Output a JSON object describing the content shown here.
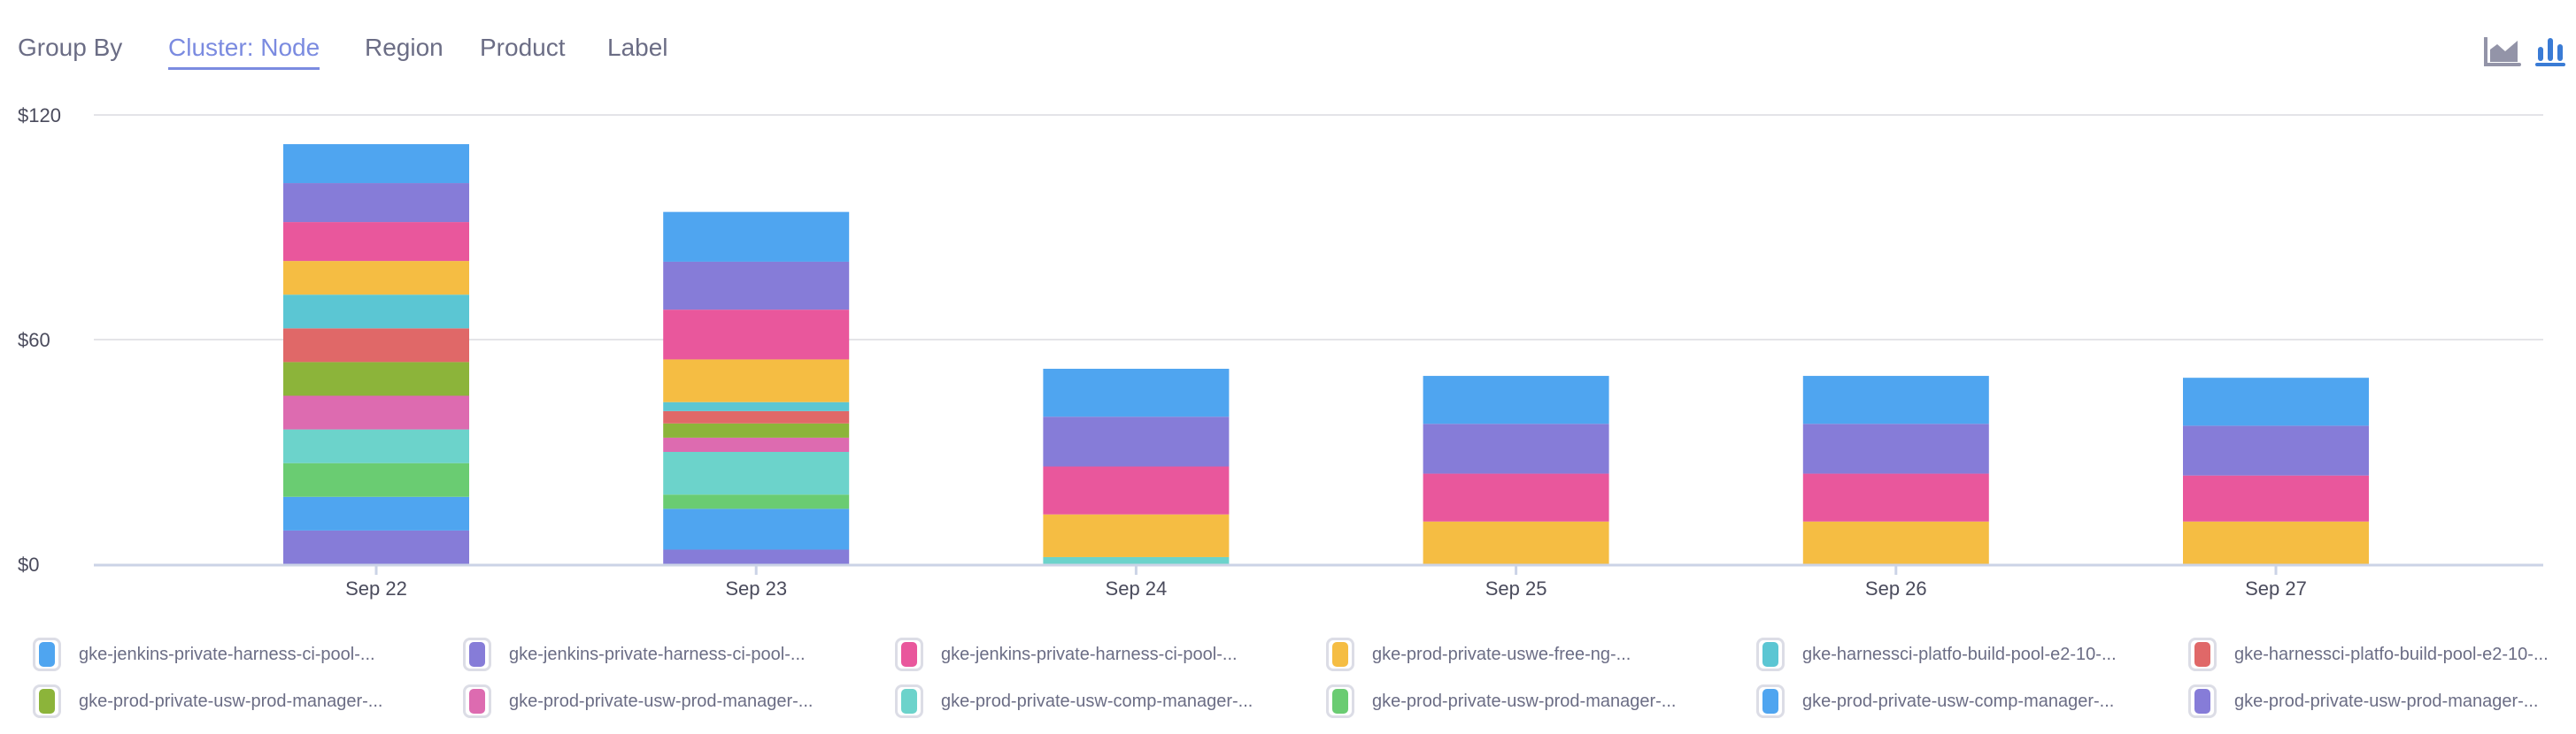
{
  "header": {
    "group_by_label": "Group By",
    "tabs": [
      {
        "label": "Cluster: Node",
        "active": true
      },
      {
        "label": "Region",
        "active": false
      },
      {
        "label": "Product",
        "active": false
      },
      {
        "label": "Label",
        "active": false
      }
    ],
    "chart_type_icons": [
      {
        "name": "area-chart-icon",
        "active": false,
        "color": "#9394a8"
      },
      {
        "name": "bar-chart-icon",
        "active": true,
        "color": "#3a7bd5"
      }
    ]
  },
  "chart_data": {
    "type": "bar",
    "stacked": true,
    "categories": [
      "Sep 22",
      "Sep 23",
      "Sep 24",
      "Sep 25",
      "Sep 26",
      "Sep 27"
    ],
    "ylim": [
      0,
      120
    ],
    "yticks": [
      "$0",
      "$60",
      "$120"
    ],
    "ytick_values": [
      0,
      60,
      120
    ],
    "grid": true,
    "legend_placement": "bottom",
    "series": [
      {
        "name": "gke-jenkins-private-harness-ci-pool-...",
        "color": "#4fa5f0",
        "values": [
          10.4,
          13.3,
          12.8,
          12.8,
          12.8,
          12.8
        ]
      },
      {
        "name": "gke-jenkins-private-harness-ci-pool-...",
        "color": "#867cd8",
        "values": [
          10.4,
          12.8,
          13.3,
          13.3,
          13.3,
          13.3
        ]
      },
      {
        "name": "gke-jenkins-private-harness-ci-pool-...",
        "color": "#e9579c",
        "values": [
          10.4,
          13.3,
          12.8,
          12.8,
          12.8,
          12.3
        ]
      },
      {
        "name": "gke-prod-private-uswe-free-ng-...",
        "color": "#f5bd43",
        "values": [
          9.0,
          11.4,
          11.4,
          11.4,
          11.4,
          11.4
        ]
      },
      {
        "name": "gke-harnessci-platfo-build-pool-e2-10-...",
        "color": "#5bc6d3",
        "values": [
          9.0,
          2.4,
          0,
          0,
          0,
          0
        ]
      },
      {
        "name": "gke-harnessci-platfo-build-pool-e2-10-...",
        "color": "#e06868",
        "values": [
          9.0,
          3.3,
          0,
          0,
          0,
          0
        ]
      },
      {
        "name": "gke-prod-private-usw-prod-manager-...",
        "color": "#8cb43a",
        "values": [
          9.0,
          3.8,
          0,
          0,
          0,
          0
        ]
      },
      {
        "name": "gke-prod-private-usw-prod-manager-...",
        "color": "#dd6bb0",
        "values": [
          9.0,
          3.8,
          0,
          0,
          0,
          0
        ]
      },
      {
        "name": "gke-prod-private-usw-comp-manager-...",
        "color": "#6cd3cb",
        "values": [
          9.0,
          11.4,
          1.9,
          0,
          0,
          0
        ]
      },
      {
        "name": "gke-prod-private-usw-prod-manager-...",
        "color": "#6acc72",
        "values": [
          9.0,
          3.8,
          0,
          0,
          0,
          0
        ]
      },
      {
        "name": "gke-prod-private-usw-comp-manager-...",
        "color": "#4fa5f0",
        "values": [
          9.0,
          10.9,
          0,
          0,
          0,
          0
        ]
      },
      {
        "name": "gke-prod-private-usw-prod-manager-...",
        "color": "#867cd8",
        "values": [
          9.0,
          3.9,
          0,
          0,
          0,
          0
        ]
      }
    ]
  }
}
